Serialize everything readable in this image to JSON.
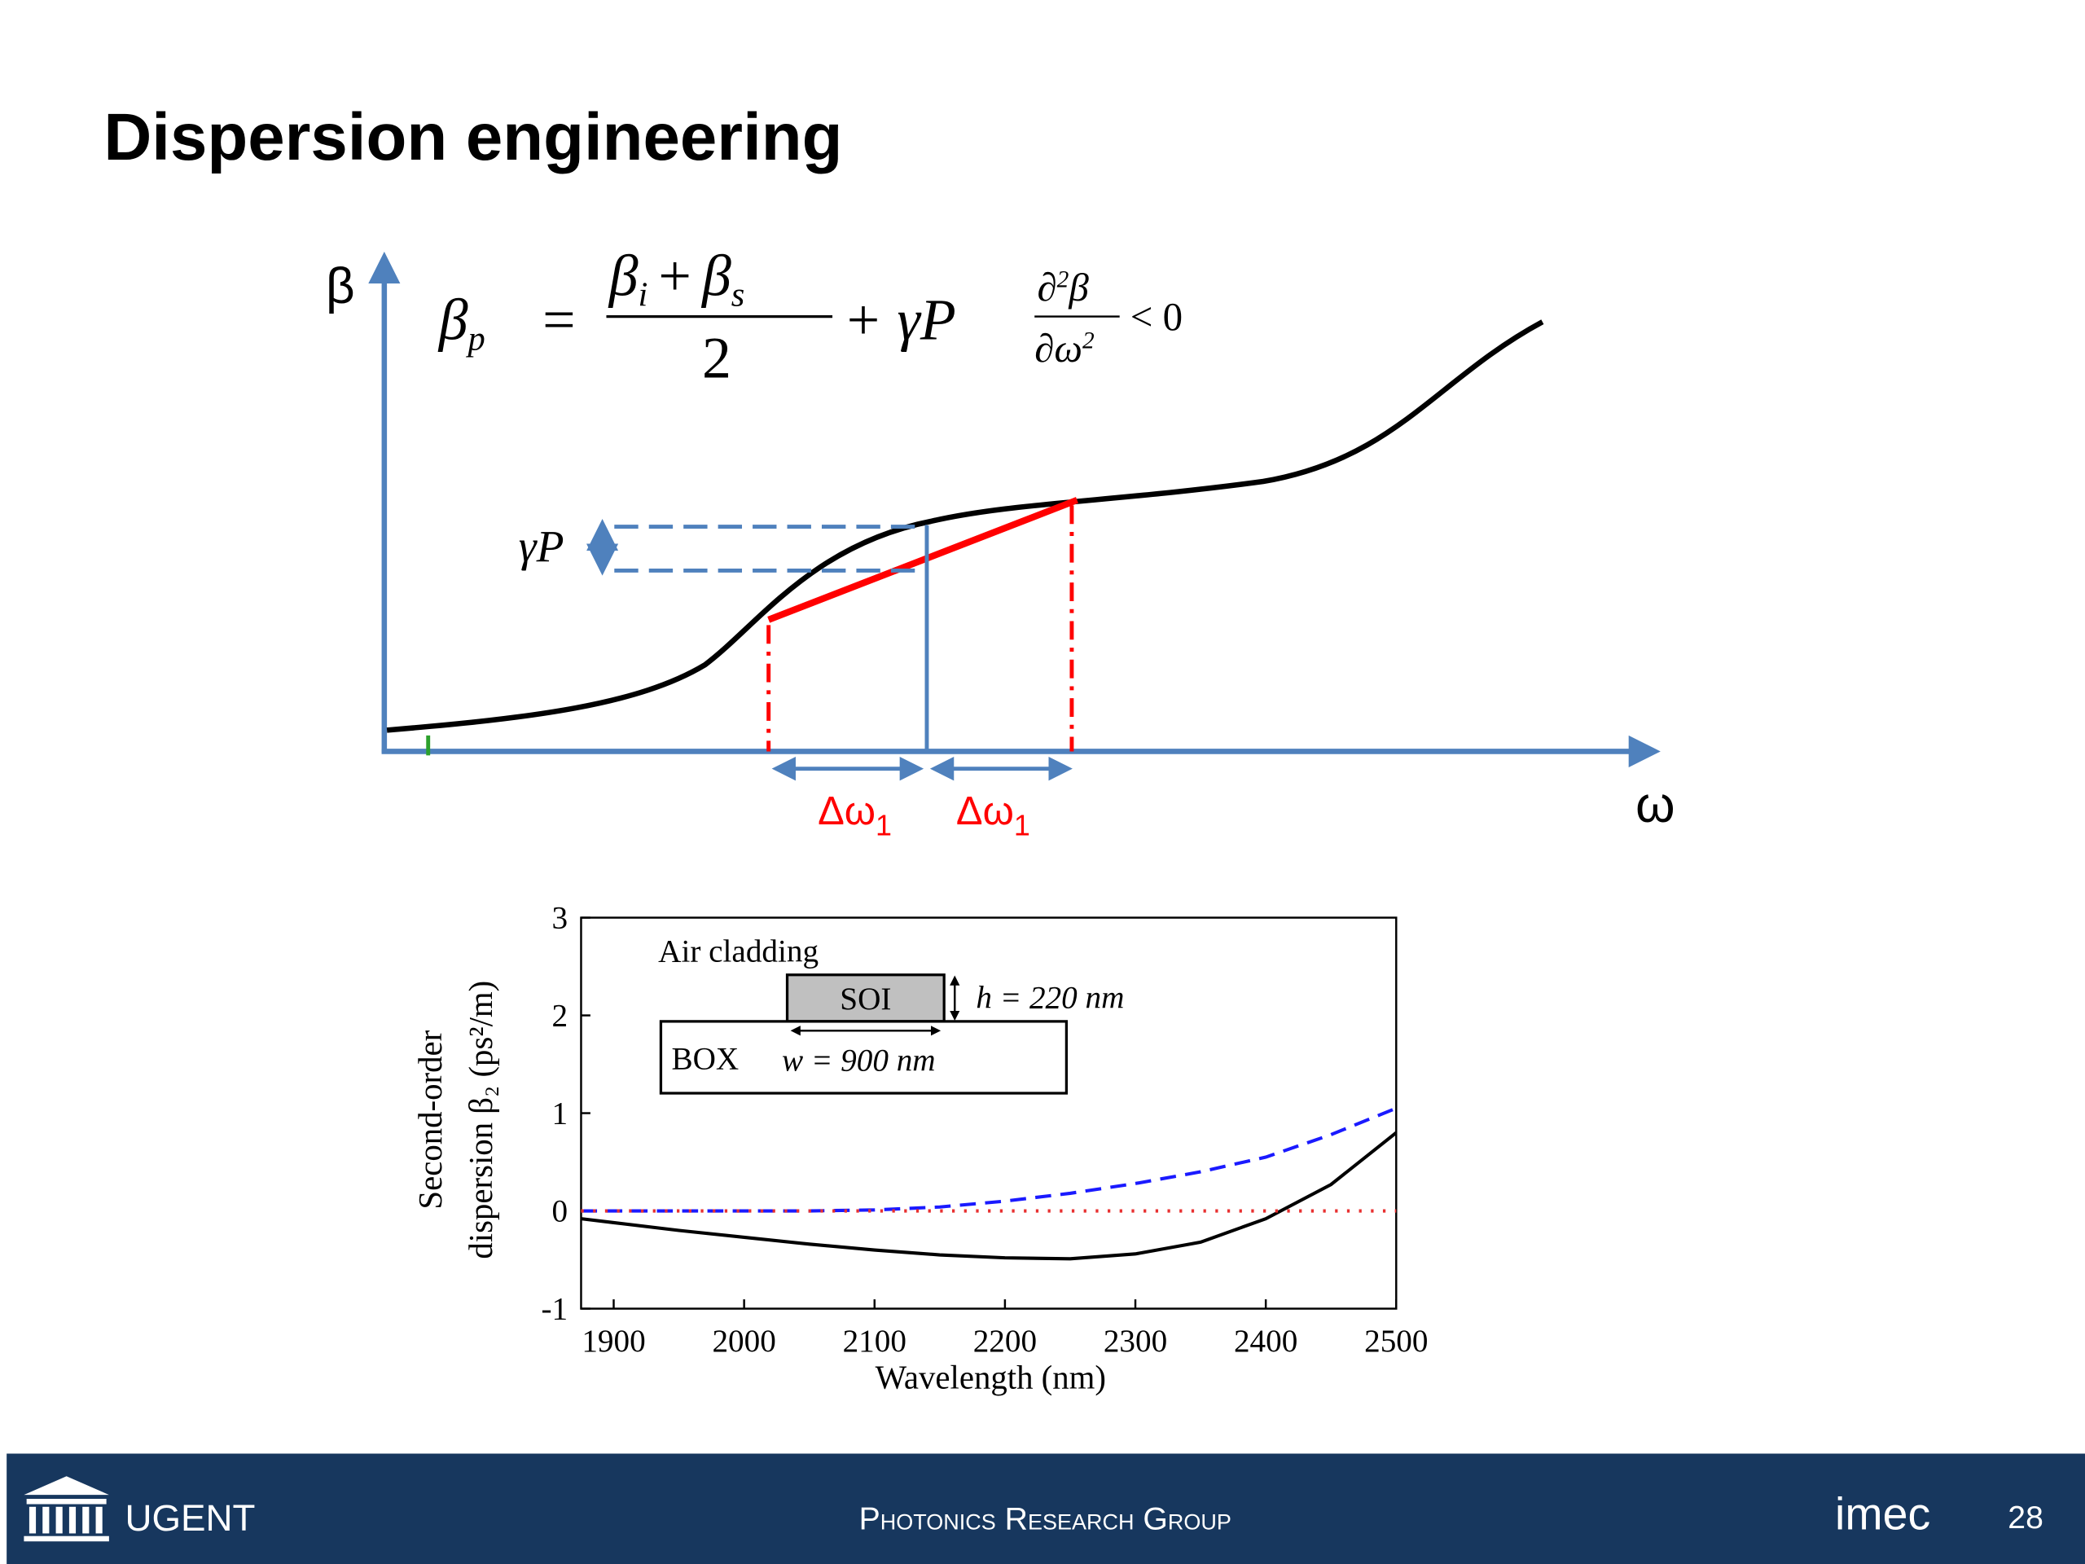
{
  "slide": {
    "title": "Dispersion engineering"
  },
  "diagram": {
    "y_label": "β",
    "x_label": "ω",
    "gamma_label": "γP",
    "delta_labels": [
      {
        "label": "Δω",
        "sub": "1"
      },
      {
        "label": "Δω",
        "sub": "1"
      }
    ],
    "equation": {
      "lhs": "β",
      "lhs_sub": "p",
      "equals": "=",
      "num_1": "β",
      "num_1_sub": "i",
      "num_plus": "+",
      "num_2": "β",
      "num_2_sub": "s",
      "denominator": "2",
      "tail": "+ γP"
    },
    "condition": {
      "num": "∂",
      "num_sup": "2",
      "num_tail": "β",
      "den": "∂ω",
      "den_sup": "2",
      "relation": "< 0"
    }
  },
  "chart_data": {
    "type": "line",
    "xlabel": "Wavelength (nm)",
    "ylabel": [
      "Second-order",
      "dispersion β₂ (ps²/m)"
    ],
    "x": [
      1875,
      1900,
      1950,
      2000,
      2050,
      2100,
      2150,
      2200,
      2250,
      2300,
      2350,
      2400,
      2450,
      2500
    ],
    "series": [
      {
        "color": "#000000",
        "dash": "solid",
        "values": [
          -0.08,
          -0.12,
          -0.2,
          -0.27,
          -0.34,
          -0.4,
          -0.45,
          -0.48,
          -0.49,
          -0.44,
          -0.32,
          -0.08,
          0.27,
          0.8
        ]
      },
      {
        "color": "#1a1aff",
        "dash": "dashed",
        "values": [
          0,
          0,
          0,
          0,
          0,
          0.01,
          0.04,
          0.1,
          0.18,
          0.28,
          0.4,
          0.55,
          0.78,
          1.05
        ]
      },
      {
        "color": "#e83030",
        "dash": "dotted",
        "values": [
          0,
          0,
          0,
          0,
          0,
          0,
          0,
          0,
          0,
          0,
          0,
          0,
          0,
          0
        ]
      }
    ],
    "xlim": [
      1875,
      2500
    ],
    "ylim": [
      -1,
      3
    ],
    "xticks": [
      1900,
      2000,
      2100,
      2200,
      2300,
      2400,
      2500
    ],
    "yticks": [
      -1,
      0,
      1,
      2,
      3
    ],
    "grid": false,
    "annotations": {
      "cladding": "Air cladding",
      "core": "SOI",
      "height": "h = 220 nm",
      "substrate": "BOX",
      "width": "w = 900 nm"
    }
  },
  "footer": {
    "left": "UGENT",
    "center": "Photonics Research Group",
    "right": "imec",
    "page": "28"
  }
}
